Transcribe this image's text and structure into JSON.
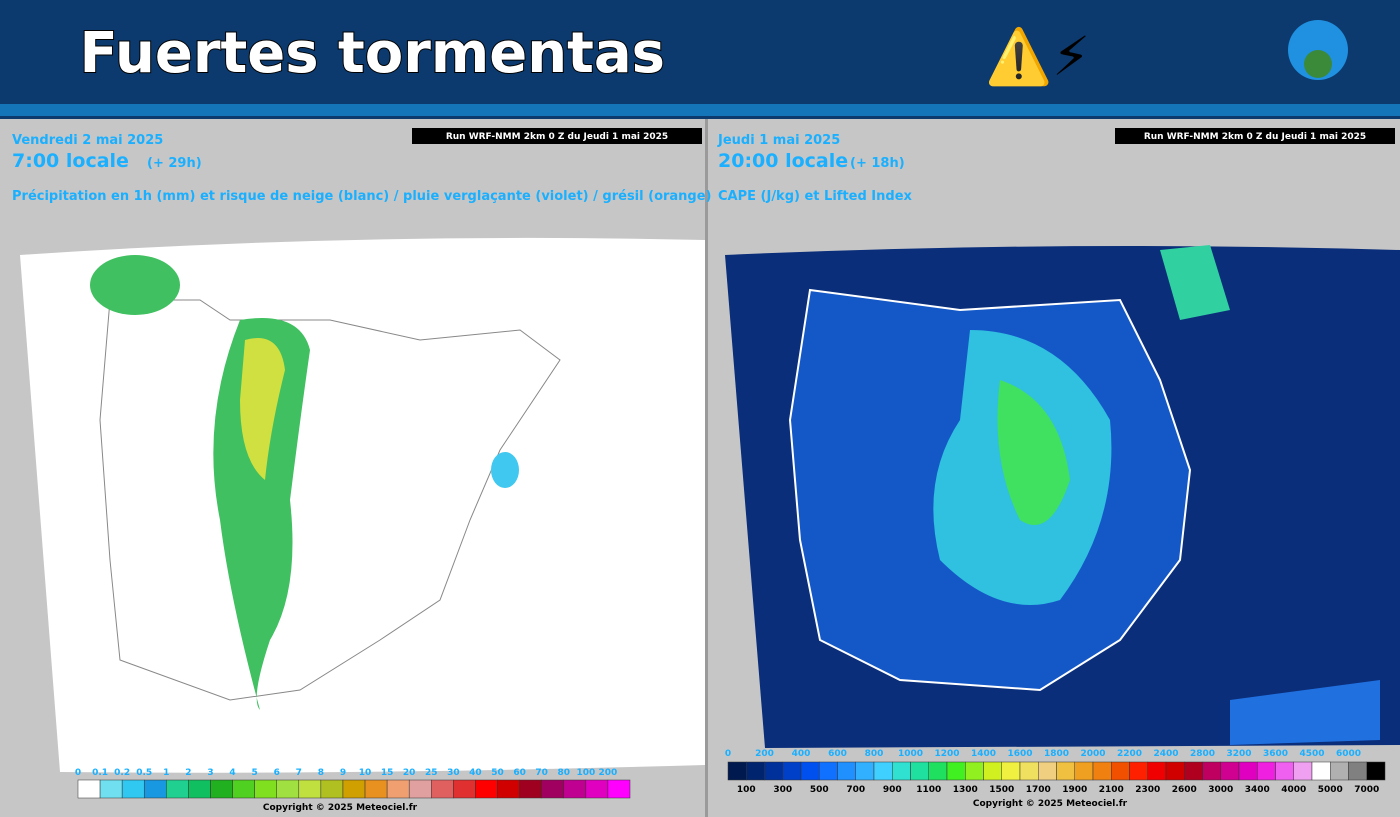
{
  "header": {
    "title": "Fuertes tormentas",
    "icons": "⚠️⚡"
  },
  "left_panel": {
    "date": "Vendredi 2 mai 2025",
    "time": "7:00 locale",
    "offset": "(+ 29h)",
    "run": "Run WRF-NMM 2km 0 Z du Jeudi 1 mai 2025",
    "description": "Précipitation en 1h (mm) et risque de neige (blanc) / pluie verglaçante (violet) / grésil (orange)",
    "legend_labels": [
      "0",
      "0.1",
      "0.2",
      "0.5",
      "1",
      "2",
      "3",
      "4",
      "5",
      "6",
      "7",
      "8",
      "9",
      "10",
      "15",
      "20",
      "25",
      "30",
      "40",
      "50",
      "60",
      "70",
      "80",
      "100",
      "200"
    ],
    "legend_colors": [
      "#ffffff",
      "#70e0f0",
      "#30c8f0",
      "#1898e0",
      "#20d090",
      "#10c060",
      "#20b020",
      "#50d020",
      "#80e020",
      "#a0e040",
      "#c0e040",
      "#b0c020",
      "#d0a000",
      "#e89020",
      "#f0a070",
      "#e0a0a0",
      "#e06060",
      "#e03030",
      "#ff0000",
      "#d00000",
      "#a00020",
      "#a00060",
      "#c00090",
      "#e000c0",
      "#ff00ff"
    ],
    "copyright": "Copyright © 2025 Meteociel.fr"
  },
  "right_panel": {
    "date": "Jeudi 1 mai 2025",
    "time": "20:00 locale",
    "offset": "(+ 18h)",
    "run": "Run WRF-NMM 2km 0 Z du Jeudi 1 mai 2025",
    "description": "CAPE (J/kg) et Lifted Index",
    "legend_labels_top": [
      "0",
      "200",
      "400",
      "600",
      "800",
      "1000",
      "1200",
      "1400",
      "1600",
      "1800",
      "2000",
      "2200",
      "2400",
      "2800",
      "3200",
      "3600",
      "4500",
      "6000"
    ],
    "legend_labels_bottom": [
      "100",
      "300",
      "500",
      "700",
      "900",
      "1100",
      "1300",
      "1500",
      "1700",
      "1900",
      "2100",
      "2300",
      "2600",
      "3000",
      "3400",
      "4000",
      "5000",
      "7000"
    ],
    "legend_colors": [
      "#001a50",
      "#00246e",
      "#00309a",
      "#0040c8",
      "#0050f0",
      "#1070ff",
      "#2090ff",
      "#30b0ff",
      "#40d0ff",
      "#30e0d0",
      "#20e0a0",
      "#20e060",
      "#40f020",
      "#90f020",
      "#d0f020",
      "#f0f040",
      "#f0e060",
      "#f0d080",
      "#f0c040",
      "#f0a020",
      "#f08010",
      "#f05000",
      "#ff2000",
      "#f00000",
      "#d00000",
      "#b00020",
      "#c00060",
      "#d00090",
      "#e000c0",
      "#f020e0",
      "#f060f0",
      "#f0a0f0",
      "#ffffff",
      "#b0b0b0",
      "#808080",
      "#000000"
    ],
    "copyright": "Copyright © 2025 Meteociel.fr"
  }
}
